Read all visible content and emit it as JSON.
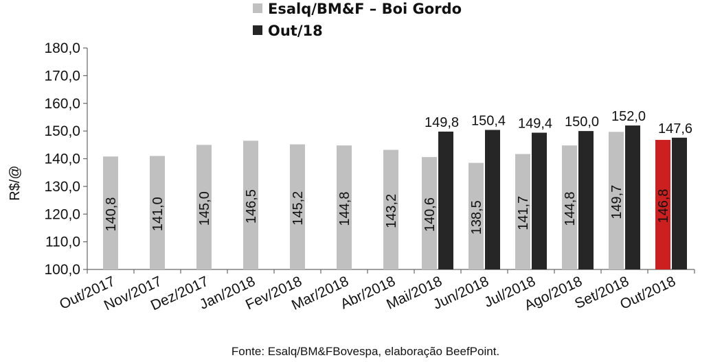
{
  "chart_data": {
    "type": "bar",
    "ylabel": "R$/@",
    "ylim": [
      100,
      180
    ],
    "yticks": [
      "100,0",
      "110,0",
      "120,0",
      "130,0",
      "140,0",
      "150,0",
      "160,0",
      "170,0",
      "180,0"
    ],
    "grid": false,
    "legend_position": "top",
    "categories": [
      "Out/2017",
      "Nov/2017",
      "Dez/2017",
      "Jan/2018",
      "Fev/2018",
      "Mar/2018",
      "Abr/2018",
      "Mai/2018",
      "Jun/2018",
      "Jul/2018",
      "Ago/2018",
      "Set/2018",
      "Out/2018"
    ],
    "series": [
      {
        "name": "Esalq/BM&F – Boi Gordo",
        "color": "#c0c0c0",
        "highlight_color": "#cc1f1f",
        "highlight_index": 12,
        "values": [
          140.8,
          141.0,
          145.0,
          146.5,
          145.2,
          144.8,
          143.2,
          140.6,
          138.5,
          141.7,
          144.8,
          149.7,
          146.8
        ],
        "labels": [
          "140,8",
          "141,0",
          "145,0",
          "146,5",
          "145,2",
          "144,8",
          "143,2",
          "140,6",
          "138,5",
          "141,7",
          "144,8",
          "149,7",
          "146,8"
        ]
      },
      {
        "name": "Out/18",
        "color": "#262626",
        "values": [
          null,
          null,
          null,
          null,
          null,
          null,
          null,
          149.8,
          150.4,
          149.4,
          150.0,
          152.0,
          147.6
        ],
        "labels": [
          null,
          null,
          null,
          null,
          null,
          null,
          null,
          "149,8",
          "150,4",
          "149,4",
          "150,0",
          "152,0",
          "147,6"
        ]
      }
    ],
    "source": "Fonte: Esalq/BM&FBovespa, elaboração BeefPoint."
  }
}
